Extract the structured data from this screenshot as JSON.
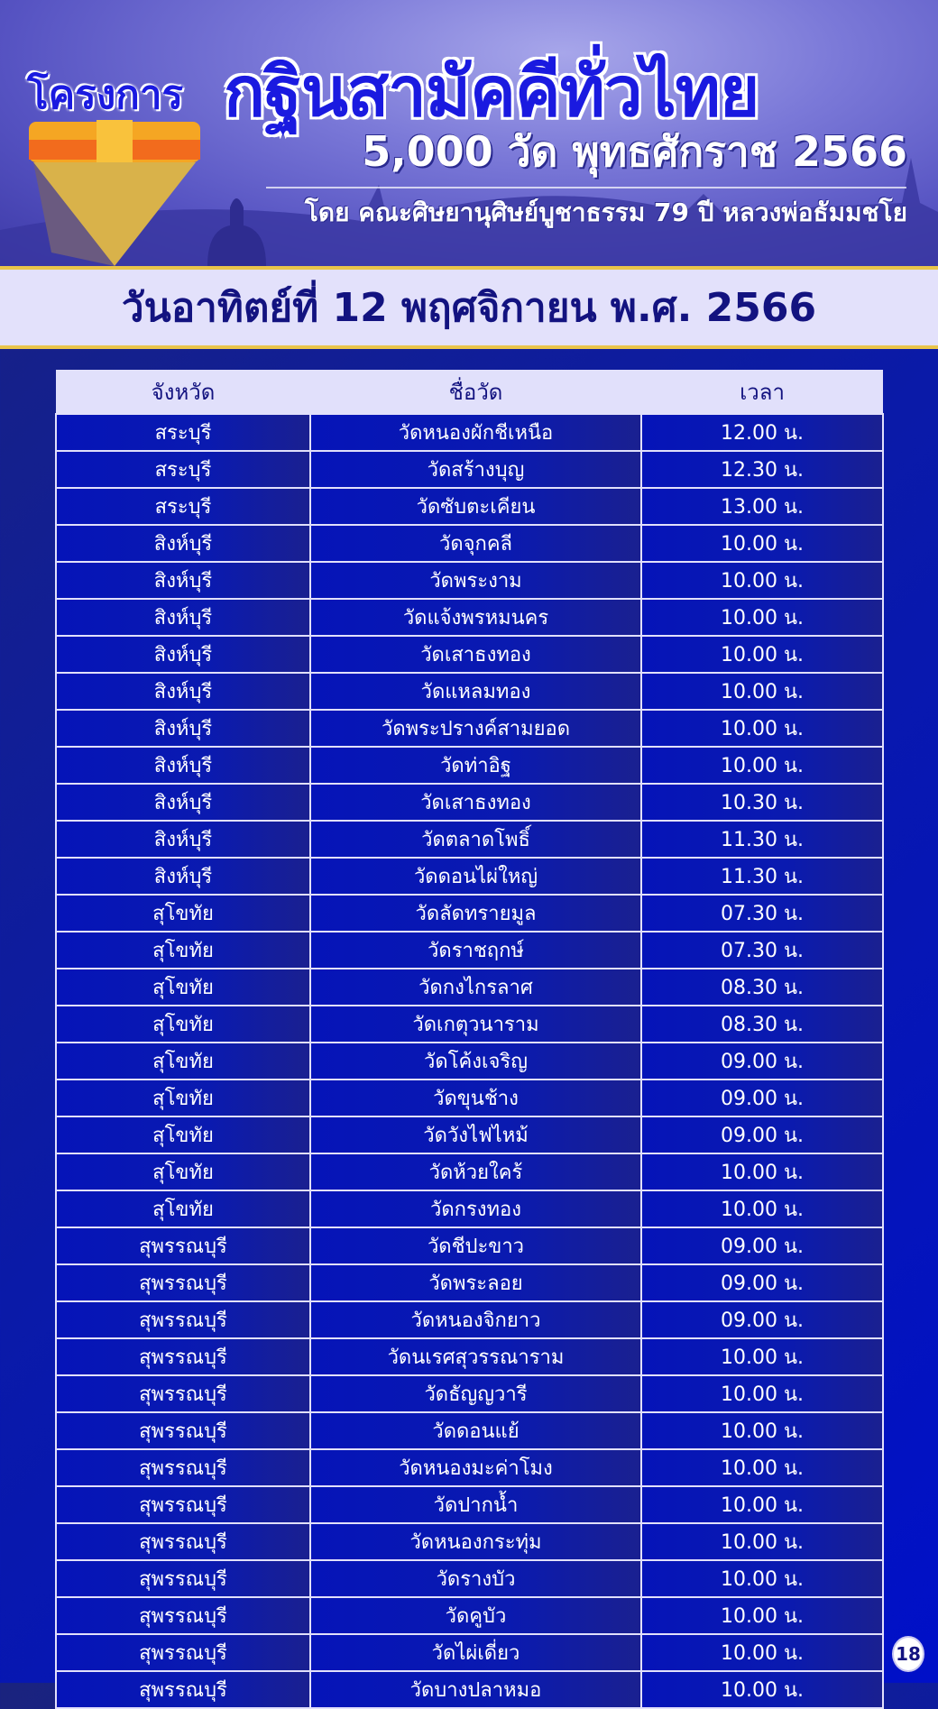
{
  "header": {
    "project_label": "โครงการ",
    "title": "กฐินสามัคคีทั่วไทย",
    "subtitle": "5,000 วัด พุทธศักราช 2566",
    "organizer": "โดย คณะศิษยานุศิษย์บูชาธรรม 79 ปี หลวงพ่อธัมมชโย"
  },
  "date": "วันอาทิตย์ที่ 12 พฤศจิกายน พ.ศ. 2566",
  "table": {
    "columns": [
      "จังหวัด",
      "ชื่อวัด",
      "เวลา"
    ],
    "rows": [
      [
        "สระบุรี",
        "วัดหนองผักชีเหนือ",
        "12.00 น."
      ],
      [
        "สระบุรี",
        "วัดสร้างบุญ",
        "12.30 น."
      ],
      [
        "สระบุรี",
        "วัดซับตะเคียน",
        "13.00 น."
      ],
      [
        "สิงห์บุรี",
        "วัดจุกคลี",
        "10.00 น."
      ],
      [
        "สิงห์บุรี",
        "วัดพระงาม",
        "10.00 น."
      ],
      [
        "สิงห์บุรี",
        "วัดแจ้งพรหมนคร",
        "10.00 น."
      ],
      [
        "สิงห์บุรี",
        "วัดเสาธงทอง",
        "10.00 น."
      ],
      [
        "สิงห์บุรี",
        "วัดแหลมทอง",
        "10.00 น."
      ],
      [
        "สิงห์บุรี",
        "วัดพระปรางค์สามยอด",
        "10.00 น."
      ],
      [
        "สิงห์บุรี",
        "วัดท่าอิฐ",
        "10.00 น."
      ],
      [
        "สิงห์บุรี",
        "วัดเสาธงทอง",
        "10.30 น."
      ],
      [
        "สิงห์บุรี",
        "วัดตลาดโพธิ์",
        "11.30 น."
      ],
      [
        "สิงห์บุรี",
        "วัดดอนไผ่ใหญ่",
        "11.30 น."
      ],
      [
        "สุโขทัย",
        "วัดลัดทรายมูล",
        "07.30 น."
      ],
      [
        "สุโขทัย",
        "วัดราชฤกษ์",
        "07.30 น."
      ],
      [
        "สุโขทัย",
        "วัดกงไกรลาศ",
        "08.30 น."
      ],
      [
        "สุโขทัย",
        "วัดเกตุวนาราม",
        "08.30 น."
      ],
      [
        "สุโขทัย",
        "วัดโค้งเจริญ",
        "09.00 น."
      ],
      [
        "สุโขทัย",
        "วัดขุนช้าง",
        "09.00 น."
      ],
      [
        "สุโขทัย",
        "วัดวังไฟไหม้",
        "09.00 น."
      ],
      [
        "สุโขทัย",
        "วัดห้วยใคร้",
        "10.00 น."
      ],
      [
        "สุโขทัย",
        "วัดกรงทอง",
        "10.00 น."
      ],
      [
        "สุพรรณบุรี",
        "วัดชีปะขาว",
        "09.00 น."
      ],
      [
        "สุพรรณบุรี",
        "วัดพระลอย",
        "09.00 น."
      ],
      [
        "สุพรรณบุรี",
        "วัดหนองจิกยาว",
        "09.00 น."
      ],
      [
        "สุพรรณบุรี",
        "วัดนเรศสุวรรณาราม",
        "10.00 น."
      ],
      [
        "สุพรรณบุรี",
        "วัดธัญญวารี",
        "10.00 น."
      ],
      [
        "สุพรรณบุรี",
        "วัดดอนแย้",
        "10.00 น."
      ],
      [
        "สุพรรณบุรี",
        "วัดหนองมะค่าโมง",
        "10.00 น."
      ],
      [
        "สุพรรณบุรี",
        "วัดปากน้ำ",
        "10.00 น."
      ],
      [
        "สุพรรณบุรี",
        "วัดหนองกระทุ่ม",
        "10.00 น."
      ],
      [
        "สุพรรณบุรี",
        "วัดรางบัว",
        "10.00 น."
      ],
      [
        "สุพรรณบุรี",
        "วัดคูบัว",
        "10.00 น."
      ],
      [
        "สุพรรณบุรี",
        "วัดไผ่เดี่ยว",
        "10.00 น."
      ],
      [
        "สุพรรณบุรี",
        "วัดบางปลาหมอ",
        "10.00 น."
      ]
    ]
  },
  "page_number": "18",
  "colors": {
    "title_blue": "#1a1ae0",
    "date_text": "#131380",
    "gold": "#e9c44a",
    "row_blue": "#0514b8"
  }
}
